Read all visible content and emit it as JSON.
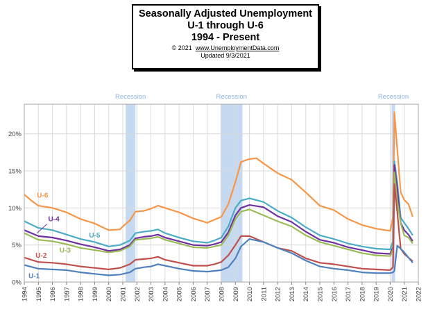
{
  "header": {
    "title_line1": "Seasonally Adjusted Unemployment",
    "title_line2": "U-1 through U-6",
    "title_line3": "1994 - Present",
    "copyright": "© 2021",
    "site": "www.UnemploymentData.com",
    "updated": "Updated  9/3/2021"
  },
  "chart_data": {
    "type": "line",
    "xlim": [
      1994,
      2022
    ],
    "ylim": [
      0,
      24
    ],
    "x_ticks": [
      "1994",
      "1995",
      "1996",
      "1997",
      "1998",
      "1999",
      "2000",
      "2001",
      "2002",
      "2003",
      "2004",
      "2005",
      "2006",
      "2007",
      "2008",
      "2009",
      "2010",
      "2011",
      "2012",
      "2013",
      "2014",
      "2015",
      "2016",
      "2017",
      "2018",
      "2019",
      "2020",
      "2021",
      "2022"
    ],
    "y_ticks": [
      "0%",
      "5%",
      "10%",
      "15%",
      "20%"
    ],
    "grid": true,
    "recessions": [
      {
        "label": "Recession",
        "start": 2001.2,
        "end": 2001.9
      },
      {
        "label": "Recession",
        "start": 2007.95,
        "end": 2009.5
      },
      {
        "label": "Recession",
        "start": 2020.1,
        "end": 2020.35
      }
    ],
    "series": [
      {
        "name": "U-6",
        "color": "#f79646",
        "points": [
          [
            1994,
            11.8
          ],
          [
            1994.5,
            11.0
          ],
          [
            1995,
            10.3
          ],
          [
            1996,
            10.0
          ],
          [
            1997,
            9.4
          ],
          [
            1998,
            8.5
          ],
          [
            1999,
            7.9
          ],
          [
            2000,
            7.0
          ],
          [
            2000.8,
            7.1
          ],
          [
            2001,
            7.5
          ],
          [
            2001.5,
            8.3
          ],
          [
            2001.9,
            9.5
          ],
          [
            2002.5,
            9.6
          ],
          [
            2003,
            9.9
          ],
          [
            2003.5,
            10.3
          ],
          [
            2004,
            10.0
          ],
          [
            2005,
            9.4
          ],
          [
            2006,
            8.6
          ],
          [
            2007,
            8.0
          ],
          [
            2007.5,
            8.4
          ],
          [
            2008,
            8.8
          ],
          [
            2008.5,
            10.5
          ],
          [
            2009,
            13.5
          ],
          [
            2009.4,
            16.2
          ],
          [
            2010,
            16.6
          ],
          [
            2010.5,
            16.7
          ],
          [
            2011,
            16.0
          ],
          [
            2012,
            14.7
          ],
          [
            2013,
            13.8
          ],
          [
            2014,
            12.1
          ],
          [
            2015,
            10.3
          ],
          [
            2016,
            9.7
          ],
          [
            2017,
            8.5
          ],
          [
            2018,
            7.7
          ],
          [
            2019,
            7.2
          ],
          [
            2020,
            6.9
          ],
          [
            2020.2,
            8.7
          ],
          [
            2020.3,
            22.9
          ],
          [
            2020.5,
            18.0
          ],
          [
            2020.75,
            12.1
          ],
          [
            2021,
            11.1
          ],
          [
            2021.3,
            10.5
          ],
          [
            2021.6,
            8.8
          ]
        ]
      },
      {
        "name": "U-5",
        "color": "#4bacc6",
        "points": [
          [
            1994,
            8.2
          ],
          [
            1995,
            7.3
          ],
          [
            1996,
            7.0
          ],
          [
            1997,
            6.4
          ],
          [
            1998,
            5.8
          ],
          [
            1999,
            5.4
          ],
          [
            2000,
            4.8
          ],
          [
            2000.8,
            5.0
          ],
          [
            2001.5,
            5.6
          ],
          [
            2001.9,
            6.6
          ],
          [
            2002.5,
            6.8
          ],
          [
            2003,
            6.9
          ],
          [
            2003.5,
            7.1
          ],
          [
            2004,
            6.6
          ],
          [
            2005,
            6.0
          ],
          [
            2006,
            5.5
          ],
          [
            2007,
            5.3
          ],
          [
            2007.5,
            5.6
          ],
          [
            2008,
            6.0
          ],
          [
            2008.5,
            7.5
          ],
          [
            2009,
            10.0
          ],
          [
            2009.4,
            11.0
          ],
          [
            2010,
            11.3
          ],
          [
            2011,
            10.8
          ],
          [
            2012,
            9.6
          ],
          [
            2013,
            8.7
          ],
          [
            2014,
            7.4
          ],
          [
            2015,
            6.3
          ],
          [
            2016,
            5.8
          ],
          [
            2017,
            5.2
          ],
          [
            2018,
            4.8
          ],
          [
            2019,
            4.5
          ],
          [
            2020,
            4.4
          ],
          [
            2020.2,
            5.5
          ],
          [
            2020.3,
            16.3
          ],
          [
            2020.5,
            13.5
          ],
          [
            2020.75,
            8.7
          ],
          [
            2021,
            8.0
          ],
          [
            2021.3,
            7.2
          ],
          [
            2021.6,
            6.3
          ]
        ]
      },
      {
        "name": "U-4",
        "color": "#7030a0",
        "points": [
          [
            1994,
            7.0
          ],
          [
            1995,
            6.2
          ],
          [
            1996,
            6.0
          ],
          [
            1997,
            5.6
          ],
          [
            1998,
            5.1
          ],
          [
            1999,
            4.7
          ],
          [
            2000,
            4.2
          ],
          [
            2000.8,
            4.4
          ],
          [
            2001.5,
            5.0
          ],
          [
            2001.9,
            5.9
          ],
          [
            2002.5,
            6.1
          ],
          [
            2003,
            6.2
          ],
          [
            2003.5,
            6.4
          ],
          [
            2004,
            6.0
          ],
          [
            2005,
            5.5
          ],
          [
            2006,
            5.0
          ],
          [
            2007,
            4.9
          ],
          [
            2007.5,
            5.1
          ],
          [
            2008,
            5.4
          ],
          [
            2008.5,
            6.7
          ],
          [
            2009,
            9.0
          ],
          [
            2009.4,
            10.0
          ],
          [
            2010,
            10.4
          ],
          [
            2011,
            10.1
          ],
          [
            2012,
            8.9
          ],
          [
            2013,
            8.1
          ],
          [
            2014,
            6.8
          ],
          [
            2015,
            5.7
          ],
          [
            2016,
            5.3
          ],
          [
            2017,
            4.7
          ],
          [
            2018,
            4.3
          ],
          [
            2019,
            3.9
          ],
          [
            2020,
            3.8
          ],
          [
            2020.2,
            4.7
          ],
          [
            2020.3,
            15.8
          ],
          [
            2020.5,
            12.5
          ],
          [
            2020.75,
            8.0
          ],
          [
            2021,
            7.0
          ],
          [
            2021.3,
            6.4
          ],
          [
            2021.6,
            5.5
          ]
        ]
      },
      {
        "name": "U-3",
        "color": "#9bbb59",
        "points": [
          [
            1994,
            6.6
          ],
          [
            1995,
            5.7
          ],
          [
            1996,
            5.5
          ],
          [
            1997,
            5.1
          ],
          [
            1998,
            4.6
          ],
          [
            1999,
            4.3
          ],
          [
            2000,
            4.0
          ],
          [
            2000.8,
            4.2
          ],
          [
            2001.5,
            4.8
          ],
          [
            2001.9,
            5.7
          ],
          [
            2002.5,
            5.8
          ],
          [
            2003,
            5.9
          ],
          [
            2003.5,
            6.1
          ],
          [
            2004,
            5.7
          ],
          [
            2005,
            5.2
          ],
          [
            2006,
            4.7
          ],
          [
            2007,
            4.6
          ],
          [
            2007.5,
            4.8
          ],
          [
            2008,
            5.0
          ],
          [
            2008.5,
            6.3
          ],
          [
            2009,
            8.5
          ],
          [
            2009.4,
            9.5
          ],
          [
            2010,
            9.8
          ],
          [
            2011,
            9.0
          ],
          [
            2012,
            8.2
          ],
          [
            2013,
            7.5
          ],
          [
            2014,
            6.3
          ],
          [
            2015,
            5.4
          ],
          [
            2016,
            4.9
          ],
          [
            2017,
            4.4
          ],
          [
            2018,
            3.9
          ],
          [
            2019,
            3.6
          ],
          [
            2020,
            3.5
          ],
          [
            2020.2,
            4.4
          ],
          [
            2020.3,
            14.8
          ],
          [
            2020.5,
            11.0
          ],
          [
            2020.75,
            7.9
          ],
          [
            2021,
            6.3
          ],
          [
            2021.3,
            6.0
          ],
          [
            2021.6,
            5.2
          ]
        ]
      },
      {
        "name": "U-2",
        "color": "#c0504d",
        "points": [
          [
            1994,
            3.3
          ],
          [
            1995,
            2.7
          ],
          [
            1996,
            2.6
          ],
          [
            1997,
            2.4
          ],
          [
            1998,
            2.1
          ],
          [
            1999,
            1.9
          ],
          [
            2000,
            1.7
          ],
          [
            2000.8,
            1.9
          ],
          [
            2001.5,
            2.4
          ],
          [
            2001.9,
            3.0
          ],
          [
            2002.5,
            3.1
          ],
          [
            2003,
            3.2
          ],
          [
            2003.5,
            3.4
          ],
          [
            2004,
            3.0
          ],
          [
            2005,
            2.6
          ],
          [
            2006,
            2.2
          ],
          [
            2007,
            2.2
          ],
          [
            2007.5,
            2.4
          ],
          [
            2008,
            2.7
          ],
          [
            2008.5,
            3.6
          ],
          [
            2009,
            5.0
          ],
          [
            2009.4,
            6.2
          ],
          [
            2010,
            6.2
          ],
          [
            2011,
            5.4
          ],
          [
            2012,
            4.6
          ],
          [
            2013,
            4.2
          ],
          [
            2014,
            3.2
          ],
          [
            2015,
            2.6
          ],
          [
            2016,
            2.4
          ],
          [
            2017,
            2.1
          ],
          [
            2018,
            1.8
          ],
          [
            2019,
            1.7
          ],
          [
            2020,
            1.6
          ],
          [
            2020.2,
            2.0
          ],
          [
            2020.3,
            13.2
          ],
          [
            2020.5,
            9.5
          ],
          [
            2020.75,
            4.5
          ],
          [
            2021,
            3.8
          ],
          [
            2021.3,
            3.3
          ],
          [
            2021.6,
            2.8
          ]
        ]
      },
      {
        "name": "U-1",
        "color": "#4f81bd",
        "points": [
          [
            1994,
            2.3
          ],
          [
            1995,
            1.8
          ],
          [
            1996,
            1.7
          ],
          [
            1997,
            1.6
          ],
          [
            1998,
            1.3
          ],
          [
            1999,
            1.1
          ],
          [
            2000,
            0.9
          ],
          [
            2000.8,
            1.0
          ],
          [
            2001.5,
            1.3
          ],
          [
            2001.9,
            1.8
          ],
          [
            2002.5,
            2.0
          ],
          [
            2003,
            2.1
          ],
          [
            2003.5,
            2.4
          ],
          [
            2004,
            2.2
          ],
          [
            2005,
            1.8
          ],
          [
            2006,
            1.5
          ],
          [
            2007,
            1.4
          ],
          [
            2007.5,
            1.5
          ],
          [
            2008,
            1.6
          ],
          [
            2008.5,
            2.0
          ],
          [
            2009,
            3.2
          ],
          [
            2009.4,
            4.8
          ],
          [
            2010,
            5.8
          ],
          [
            2011,
            5.4
          ],
          [
            2012,
            4.6
          ],
          [
            2013,
            3.9
          ],
          [
            2014,
            2.9
          ],
          [
            2015,
            2.1
          ],
          [
            2016,
            1.8
          ],
          [
            2017,
            1.6
          ],
          [
            2018,
            1.3
          ],
          [
            2019,
            1.2
          ],
          [
            2020,
            1.2
          ],
          [
            2020.2,
            1.3
          ],
          [
            2020.3,
            1.5
          ],
          [
            2020.5,
            4.9
          ],
          [
            2020.75,
            4.5
          ],
          [
            2021,
            4.0
          ],
          [
            2021.3,
            3.3
          ],
          [
            2021.6,
            2.6
          ]
        ]
      }
    ]
  }
}
